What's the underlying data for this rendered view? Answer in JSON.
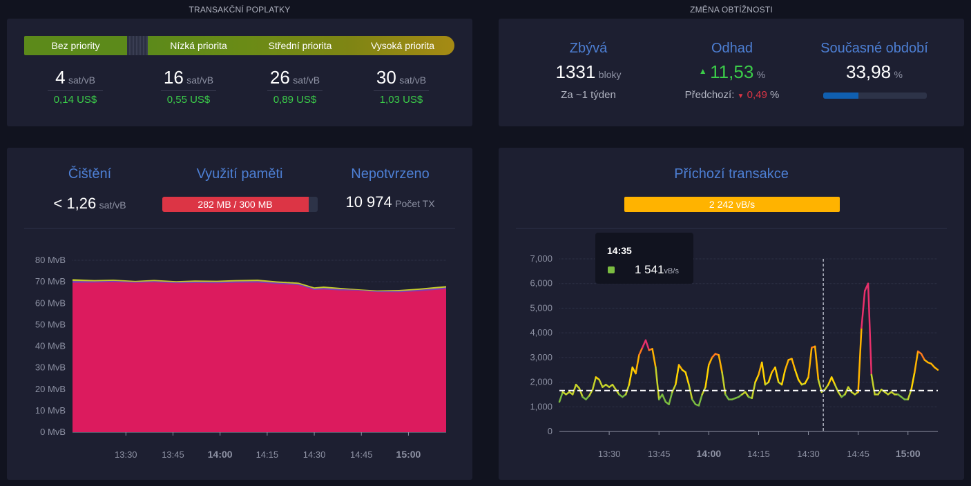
{
  "fees": {
    "section_title": "TRANSAKČNÍ POPLATKY",
    "labels": [
      "Bez priority",
      "Nízká priorita",
      "Střední priorita",
      "Vysoká priorita"
    ],
    "values": [
      "4",
      "16",
      "26",
      "30"
    ],
    "unit": "sat/vB",
    "usd": [
      "0,14 US$",
      "0,55 US$",
      "0,89 US$",
      "1,03 US$"
    ]
  },
  "difficulty": {
    "section_title": "ZMĚNA OBTÍŽNOSTI",
    "remaining_title": "Zbývá",
    "remaining_value": "1331",
    "remaining_unit": "bloky",
    "remaining_sub": "Za ~1 týden",
    "estimate_title": "Odhad",
    "estimate_value": "11,53",
    "estimate_unit": "%",
    "previous_label": "Předchozí:",
    "previous_value": "0,49",
    "previous_unit": "%",
    "period_title": "Současné období",
    "period_value": "33,98",
    "period_unit": "%",
    "period_progress": 0.3398,
    "colors": {
      "up": "#3bcc49",
      "down": "#dc3545",
      "progress": "#105fb0"
    }
  },
  "mempool": {
    "purging_title": "Čištění",
    "purging_value": "< 1,26",
    "purging_unit": "sat/vB",
    "memory_title": "Využití paměti",
    "memory_value": "282 MB / 300 MB",
    "memory_fraction": 0.94,
    "unconfirmed_title": "Nepotvrzeno",
    "unconfirmed_value": "10 974",
    "unconfirmed_unit": "Počet TX",
    "colors": {
      "memory_bar": "#dc3545"
    }
  },
  "incoming": {
    "title": "Příchozí transakce",
    "rate_value": "2 242 vB/s",
    "rate_color": "#ffb300",
    "tooltip_time": "14:35",
    "tooltip_value": "1 541",
    "tooltip_unit": "vB/s"
  },
  "chart_data": [
    {
      "type": "area",
      "y_tick_labels": [
        "0 MvB",
        "10 MvB",
        "20 MvB",
        "30 MvB",
        "40 MvB",
        "50 MvB",
        "60 MvB",
        "70 MvB",
        "80 MvB"
      ],
      "ylim": [
        0,
        80
      ],
      "x_tick_labels": [
        "13:30",
        "13:45",
        "14:00",
        "14:15",
        "14:30",
        "14:45",
        "15:00"
      ],
      "x_tick_bold": [
        false,
        false,
        true,
        false,
        false,
        false,
        true
      ],
      "x_minutes": [
        810,
        825,
        840,
        855,
        870,
        885,
        900
      ],
      "xlim": [
        793,
        912
      ],
      "grid": true,
      "series_color": "#dc1b5e",
      "x": [
        793,
        800,
        806,
        813,
        819,
        826,
        832,
        839,
        845,
        852,
        858,
        865,
        870,
        873,
        878,
        884,
        890,
        897,
        903,
        912
      ],
      "values": [
        69.5,
        69.6,
        69.8,
        69.5,
        69.7,
        69.3,
        69.4,
        69.3,
        69.5,
        69.6,
        69.0,
        68.4,
        66.2,
        66.4,
        66.0,
        65.9,
        65.2,
        65.1,
        65.6,
        66.6
      ],
      "top_values": [
        71.2,
        70.8,
        71.0,
        70.4,
        70.9,
        70.3,
        70.6,
        70.5,
        70.8,
        71.0,
        70.2,
        69.6,
        67.4,
        67.8,
        67.2,
        66.5,
        66.0,
        66.2,
        66.8,
        68.0
      ]
    },
    {
      "type": "line",
      "y_tick_labels": [
        "0",
        "1,000",
        "2,000",
        "3,000",
        "4,000",
        "5,000",
        "6,000",
        "7,000"
      ],
      "ylim": [
        0,
        7000
      ],
      "x_tick_labels": [
        "13:30",
        "13:45",
        "14:00",
        "14:15",
        "14:30",
        "14:45",
        "15:00"
      ],
      "x_tick_bold": [
        false,
        false,
        true,
        false,
        false,
        false,
        true
      ],
      "x_minutes": [
        810,
        825,
        840,
        855,
        870,
        885,
        900
      ],
      "xlim": [
        795,
        909
      ],
      "grid": true,
      "reference_line": 1660,
      "crosshair_x": 874.5,
      "x": [
        795,
        796,
        797,
        798,
        799,
        800,
        801,
        802,
        803,
        804,
        805,
        806,
        807,
        808,
        809,
        810,
        811,
        812,
        813,
        814,
        815,
        816,
        817,
        818,
        819,
        820,
        821,
        822,
        823,
        824,
        825,
        826,
        827,
        828,
        829,
        830,
        831,
        832,
        833,
        834,
        835,
        836,
        837,
        838,
        839,
        840,
        841,
        842,
        843,
        844,
        845,
        846,
        847,
        848,
        849,
        850,
        851,
        852,
        853,
        854,
        855,
        856,
        857,
        858,
        859,
        860,
        861,
        862,
        863,
        864,
        865,
        866,
        867,
        868,
        869,
        870,
        871,
        872,
        873,
        874,
        875,
        876,
        877,
        878,
        879,
        880,
        881,
        882,
        883,
        884,
        885,
        886,
        887,
        888,
        889,
        890,
        891,
        892,
        893,
        894,
        895,
        896,
        897,
        898,
        899,
        900,
        901,
        902,
        903,
        904,
        905,
        906,
        907,
        908,
        909
      ],
      "values": [
        1200,
        1600,
        1500,
        1600,
        1500,
        1900,
        1750,
        1400,
        1300,
        1450,
        1700,
        2200,
        2100,
        1800,
        1900,
        1800,
        1900,
        1700,
        1500,
        1400,
        1500,
        1900,
        2600,
        2350,
        3100,
        3400,
        3700,
        3300,
        3350,
        2600,
        1300,
        1500,
        1200,
        1100,
        1600,
        1900,
        2700,
        2500,
        2400,
        1900,
        1300,
        1100,
        1050,
        1500,
        1800,
        2700,
        3000,
        3150,
        3100,
        2400,
        1500,
        1300,
        1300,
        1350,
        1400,
        1500,
        1600,
        1400,
        1350,
        2000,
        2300,
        2800,
        1900,
        2000,
        2400,
        2600,
        2000,
        1900,
        2500,
        2900,
        2950,
        2500,
        2100,
        1900,
        1950,
        2200,
        3400,
        3450,
        2100,
        1600,
        1700,
        1900,
        2200,
        1900,
        1600,
        1400,
        1500,
        1800,
        1600,
        1500,
        1600,
        4200,
        5700,
        6000,
        2300,
        1500,
        1500,
        1700,
        1600,
        1500,
        1600,
        1500,
        1500,
        1400,
        1300,
        1300,
        1700,
        2400,
        3250,
        3150,
        2900,
        2800,
        2750,
        2600,
        2500
      ]
    }
  ]
}
